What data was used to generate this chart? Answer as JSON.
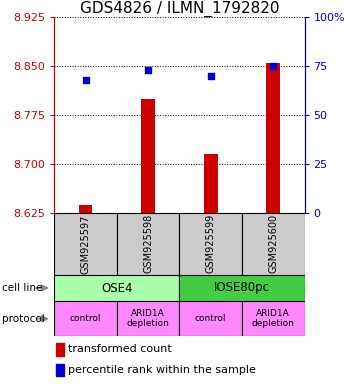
{
  "title": "GDS4826 / ILMN_1792820",
  "samples": [
    "GSM925597",
    "GSM925598",
    "GSM925599",
    "GSM925600"
  ],
  "transformed_counts": [
    8.638,
    8.8,
    8.715,
    8.855
  ],
  "percentile_ranks": [
    68.0,
    73.0,
    70.0,
    75.0
  ],
  "ylim_left": [
    8.625,
    8.925
  ],
  "ylim_right": [
    0,
    100
  ],
  "left_ticks": [
    8.625,
    8.7,
    8.775,
    8.85,
    8.925
  ],
  "right_ticks": [
    0,
    25,
    50,
    75,
    100
  ],
  "right_tick_labels": [
    "0",
    "25",
    "50",
    "75",
    "100%"
  ],
  "bar_color": "#cc0000",
  "dot_color": "#0000cc",
  "cell_line_labels": [
    "OSE4",
    "IOSE80pc"
  ],
  "cell_line_colors": [
    "#aaffaa",
    "#44cc44"
  ],
  "cell_line_spans": [
    [
      0,
      2
    ],
    [
      2,
      4
    ]
  ],
  "protocol_labels": [
    "control",
    "ARID1A\ndepletion",
    "control",
    "ARID1A\ndepletion"
  ],
  "protocol_color": "#ff88ff",
  "sample_box_color": "#cccccc",
  "left_axis_color": "#cc0000",
  "right_axis_color": "#0000cc",
  "title_fontsize": 11,
  "tick_fontsize": 8,
  "legend_fontsize": 8
}
